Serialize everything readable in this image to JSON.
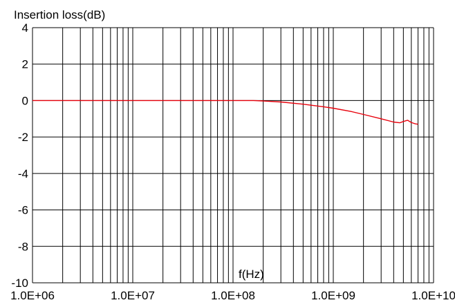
{
  "chart_data": {
    "type": "line",
    "ylabel": "Insertion loss(dB)",
    "xlabel": "f(Hz)",
    "x_scale": "log",
    "xlim": [
      1000000,
      10000000000
    ],
    "ylim": [
      -10,
      4
    ],
    "grid": true,
    "x_tick_labels": [
      "1.0E+06",
      "1.0E+07",
      "1.0E+08",
      "1.0E+09",
      "1.0E+10"
    ],
    "x_tick_values": [
      1000000,
      10000000,
      100000000,
      1000000000,
      10000000000
    ],
    "y_tick_labels": [
      "4",
      "2",
      "0",
      "-2",
      "-4",
      "-6",
      "-8",
      "-10"
    ],
    "y_tick_values": [
      4,
      2,
      0,
      -2,
      -4,
      -6,
      -8,
      -10
    ],
    "series": [
      {
        "color": "#e8000b",
        "x": [
          1000000,
          10000000,
          100000000,
          160000000,
          200000000,
          300000000,
          500000000,
          800000000,
          1000000000,
          1500000000,
          2000000000,
          3000000000,
          4000000000,
          4600000000,
          5000000000,
          5500000000,
          6000000000,
          6500000000,
          7000000000
        ],
        "y": [
          0,
          0,
          0,
          0,
          -0.02,
          -0.08,
          -0.2,
          -0.34,
          -0.42,
          -0.6,
          -0.76,
          -1.0,
          -1.18,
          -1.22,
          -1.15,
          -1.08,
          -1.2,
          -1.27,
          -1.3
        ]
      }
    ]
  }
}
